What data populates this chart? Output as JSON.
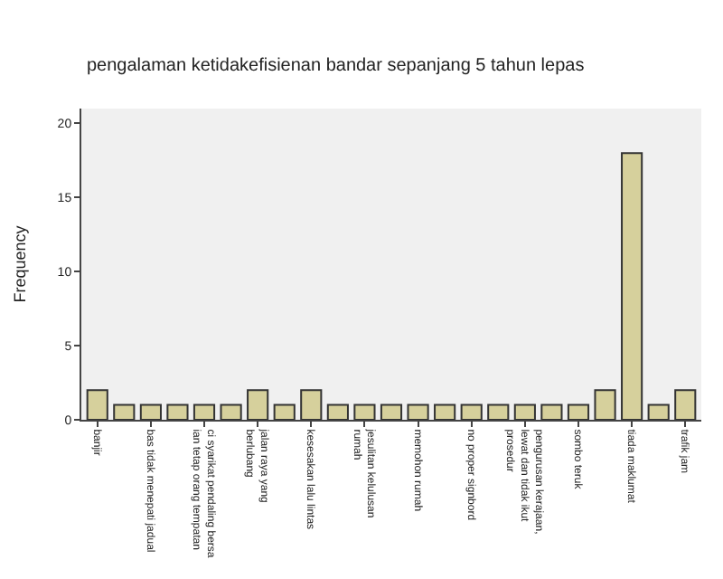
{
  "chart_data": {
    "type": "bar",
    "title": "pengalaman ketidakefisienan bandar sepanjang 5 tahun lepas",
    "ylabel": "Frequency",
    "categories": [
      "banjir",
      null,
      "bas tidak menepati jadual",
      null,
      "ci syarikat pendaling bersa\nian tetap orang tempatan",
      null,
      "jalan raya yang\nberlubang",
      null,
      "kesesakan lalu lintas",
      null,
      "jesulitan kelulusan\nrumah",
      null,
      "memohon rumah",
      null,
      "no proper signbord",
      null,
      "pengurusan kerajaan,\nlewat dan tidak ikut\nprosedur",
      null,
      "sombo teruk",
      null,
      "tiada maklumat",
      null,
      "trafik jam"
    ],
    "values": [
      2,
      1,
      1,
      1,
      1,
      1,
      2,
      1,
      2,
      1,
      1,
      1,
      1,
      1,
      1,
      1,
      1,
      1,
      1,
      2,
      18,
      1,
      2
    ],
    "color": "#d6d09c",
    "ylim": [
      0,
      21
    ],
    "yticks": [
      0,
      5,
      10,
      15,
      20
    ]
  }
}
